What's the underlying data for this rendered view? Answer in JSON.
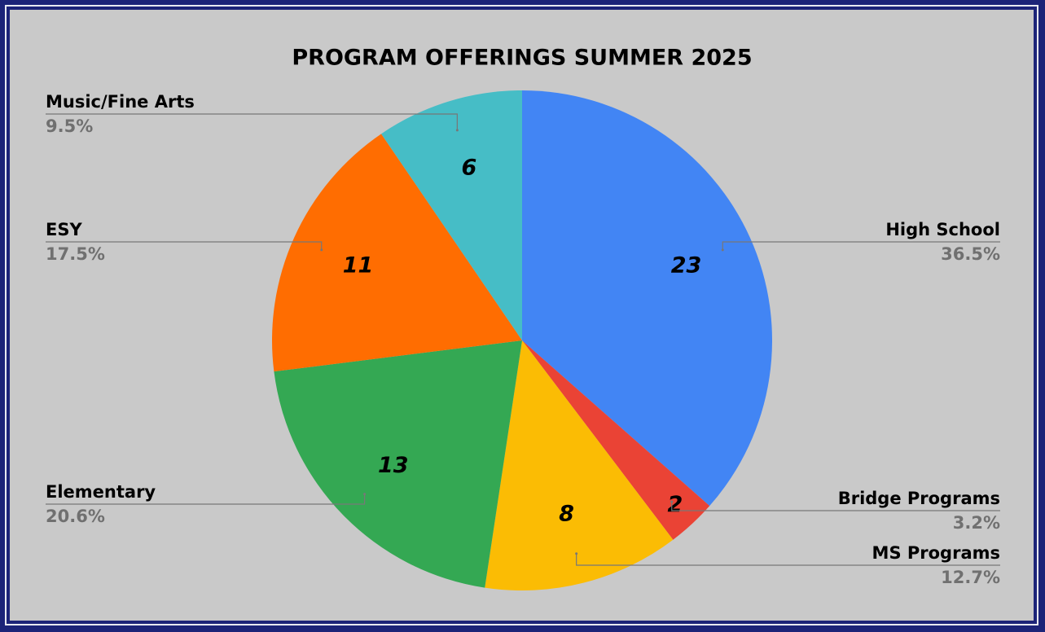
{
  "chart_data": {
    "type": "pie",
    "title": "PROGRAM OFFERINGS SUMMER 2025",
    "categories": [
      "High School",
      "Bridge Programs",
      "MS Programs",
      "Elementary",
      "ESY",
      "Music/Fine Arts"
    ],
    "values": [
      23,
      2,
      8,
      13,
      11,
      6
    ],
    "percentages": [
      36.5,
      3.2,
      12.7,
      20.6,
      17.5,
      9.5
    ],
    "percentage_labels": [
      "36.5%",
      "3.2%",
      "12.7%",
      "20.6%",
      "17.5%",
      "9.5%"
    ],
    "colors": [
      "#4285f4",
      "#ea4335",
      "#fbbc04",
      "#34a853",
      "#ff6d01",
      "#46bdc6"
    ]
  }
}
